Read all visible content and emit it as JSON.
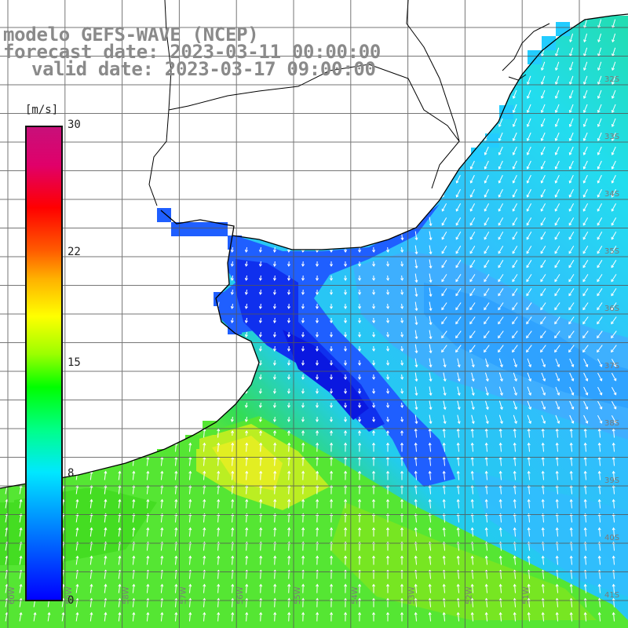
{
  "title": {
    "line1": "modelo GEFS-WAVE (NCEP)",
    "line2": "forecast date: 2023-03-11 00:00:00",
    "line3": "valid date: 2023-03-17 09:00:00"
  },
  "colorbar": {
    "unit": "[m/s]",
    "ticks": [
      {
        "label": "30",
        "value": 30
      },
      {
        "label": "22",
        "value": 22
      },
      {
        "label": "15",
        "value": 15
      },
      {
        "label": "8",
        "value": 8
      },
      {
        "label": "0",
        "value": 0
      }
    ],
    "min": 0,
    "max": 30
  },
  "lat_labels": [
    "32S",
    "33S",
    "34S",
    "35S",
    "36S",
    "37S",
    "38S",
    "39S",
    "40S",
    "41S"
  ],
  "lon_labels": [
    "60W",
    "59W",
    "58W",
    "57W",
    "56W",
    "55W",
    "54W",
    "53W",
    "52W",
    "51W"
  ],
  "colors": {
    "land": "#ffffff",
    "coast": "#000000",
    "grid": "#666666",
    "calm": "#0033ee",
    "moderate": "#33bbff",
    "cyan": "#22ddee",
    "strong": "#55ee22",
    "max": "#ddee22"
  }
}
